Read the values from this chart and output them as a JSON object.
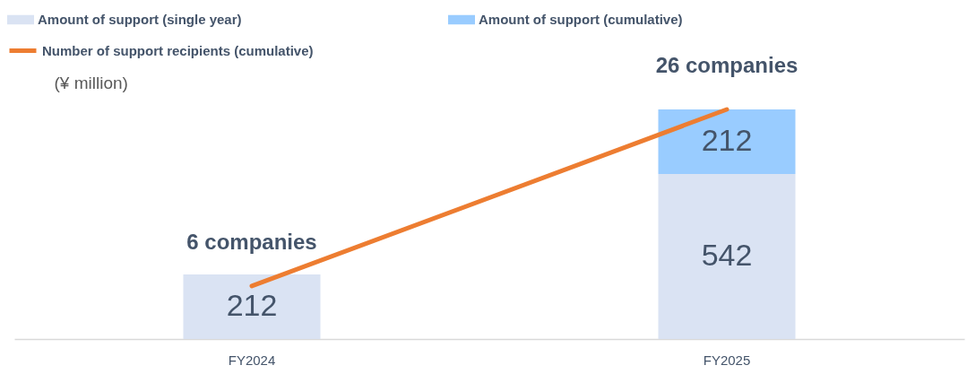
{
  "chart_data": {
    "type": "bar",
    "ylabel": "(¥ million)",
    "categories": [
      "FY2024",
      "FY2025"
    ],
    "stacked": true,
    "data_labels": true,
    "legend": "top left",
    "tick_labels": "x",
    "series": [
      {
        "name": "Amount of support (single year)",
        "color": "#dae3f3",
        "values": [
          212,
          542
        ]
      },
      {
        "name": "Amount of support (cumulative)",
        "color": "#99ccff",
        "values": [
          null,
          212
        ]
      },
      {
        "name": "Number of support recipients (cumulative)",
        "type": "line",
        "axis": "y2",
        "color": "#ed7d31",
        "values": [
          6,
          26
        ],
        "value_labels": [
          "6 companies",
          "26 companies"
        ]
      }
    ]
  }
}
